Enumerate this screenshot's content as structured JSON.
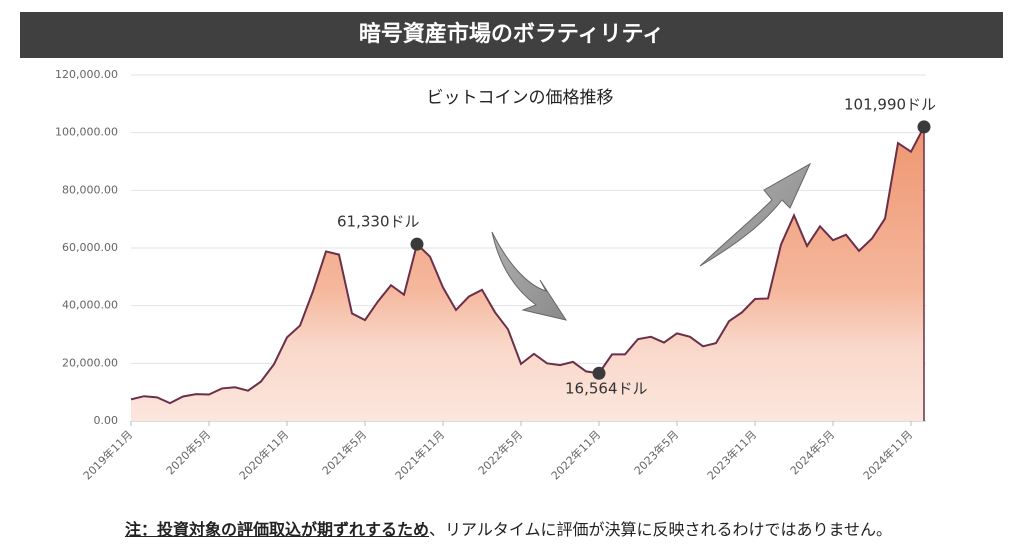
{
  "header": {
    "title": "暗号資産市場のボラティリティ"
  },
  "chart_data": {
    "type": "area",
    "title": "ビットコインの価格推移",
    "categories": [
      "2019年11月",
      null,
      null,
      null,
      null,
      null,
      "2020年5月",
      null,
      null,
      null,
      null,
      null,
      "2020年11月",
      null,
      null,
      null,
      null,
      null,
      "2021年5月",
      null,
      null,
      null,
      null,
      null,
      "2021年11月",
      null,
      null,
      null,
      null,
      null,
      "2022年5月",
      null,
      null,
      null,
      null,
      null,
      "2022年11月",
      null,
      null,
      null,
      null,
      null,
      "2023年5月",
      null,
      null,
      null,
      null,
      null,
      "2023年11月",
      null,
      null,
      null,
      null,
      null,
      "2024年5月",
      null,
      null,
      null,
      null,
      null,
      "2024年11月",
      null
    ],
    "values": [
      7500,
      8600,
      8200,
      6200,
      8500,
      9300,
      9200,
      11300,
      11700,
      10500,
      13700,
      19700,
      29000,
      33100,
      45000,
      58800,
      57700,
      37300,
      35000,
      41500,
      47100,
      43800,
      61330,
      57000,
      46300,
      38500,
      43200,
      45500,
      37700,
      31800,
      19800,
      23300,
      20000,
      19400,
      20500,
      17200,
      16564,
      23100,
      23100,
      28400,
      29200,
      27200,
      30400,
      29200,
      25900,
      27000,
      34600,
      37700,
      42300,
      42500,
      61200,
      71300,
      60700,
      67500,
      62700,
      64600,
      59000,
      63300,
      70200,
      96400,
      93400,
      101990
    ],
    "value_labels": [
      null,
      null,
      null,
      null,
      null,
      null,
      null,
      null,
      null,
      null,
      null,
      null,
      null,
      null,
      null,
      null,
      null,
      null,
      null,
      null,
      null,
      null,
      "61,330ドル",
      null,
      null,
      null,
      null,
      null,
      null,
      null,
      null,
      null,
      null,
      null,
      null,
      null,
      "16,564ドル",
      null,
      null,
      null,
      null,
      null,
      null,
      null,
      null,
      null,
      null,
      null,
      null,
      null,
      null,
      null,
      null,
      null,
      null,
      null,
      null,
      null,
      null,
      null,
      null,
      "101,990ドル"
    ],
    "color": "#6b2f4a",
    "ylim": [
      0,
      120000
    ],
    "yticks": [
      {
        "value": 0,
        "label": "0.00"
      },
      {
        "value": 20000,
        "label": "20,000.00"
      },
      {
        "value": 40000,
        "label": "40,000.00"
      },
      {
        "value": 60000,
        "label": "60,000.00"
      },
      {
        "value": 80000,
        "label": "80,000.00"
      },
      {
        "value": 100000,
        "label": "100,000.00"
      },
      {
        "value": 120000,
        "label": "120,000.00"
      }
    ],
    "grid": true
  },
  "footnote": {
    "emphasis": "注：投資対象の評価取込が期ずれするため",
    "text": "、リアルタイムに評価が決算に反映されるわけではありません。"
  }
}
